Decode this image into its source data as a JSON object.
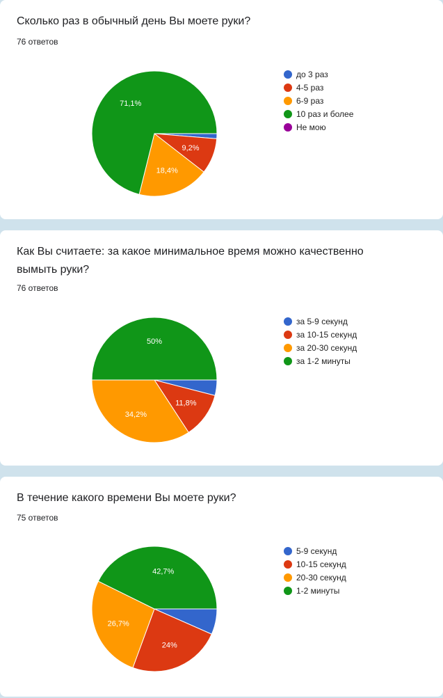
{
  "chart_data": [
    {
      "type": "pie",
      "title": "Сколько раз в обычный день Вы моете руки?",
      "responses": "76 ответов",
      "categories": [
        "до 3 раз",
        "4-5 раз",
        "6-9 раз",
        "10 раз и более",
        "Не мою"
      ],
      "values": [
        1.3,
        9.2,
        18.4,
        71.1,
        0
      ],
      "labels": [
        "",
        "9,2%",
        "18,4%",
        "71,1%",
        ""
      ],
      "colors": [
        "#3366cc",
        "#dc3912",
        "#ff9900",
        "#109618",
        "#990099"
      ],
      "legend": "right"
    },
    {
      "type": "pie",
      "title": "Как Вы считаете: за какое минимальное время можно качественно вымыть руки?",
      "responses": "76 ответов",
      "categories": [
        "за 5-9 секунд",
        "за 10-15 секунд",
        "за 20-30 секунд",
        "за 1-2 минуты"
      ],
      "values": [
        4,
        11.8,
        34.2,
        50
      ],
      "labels": [
        "",
        "11,8%",
        "34,2%",
        "50%"
      ],
      "colors": [
        "#3366cc",
        "#dc3912",
        "#ff9900",
        "#109618"
      ],
      "legend": "right"
    },
    {
      "type": "pie",
      "title": "В течение какого времени Вы моете руки?",
      "responses": "75 ответов",
      "categories": [
        "5-9 секунд",
        "10-15 секунд",
        "20-30 секунд",
        "1-2 минуты"
      ],
      "values": [
        6.6,
        24,
        26.7,
        42.7
      ],
      "labels": [
        "",
        "24%",
        "26,7%",
        "42,7%"
      ],
      "colors": [
        "#3366cc",
        "#dc3912",
        "#ff9900",
        "#109618"
      ],
      "legend": "right"
    }
  ]
}
